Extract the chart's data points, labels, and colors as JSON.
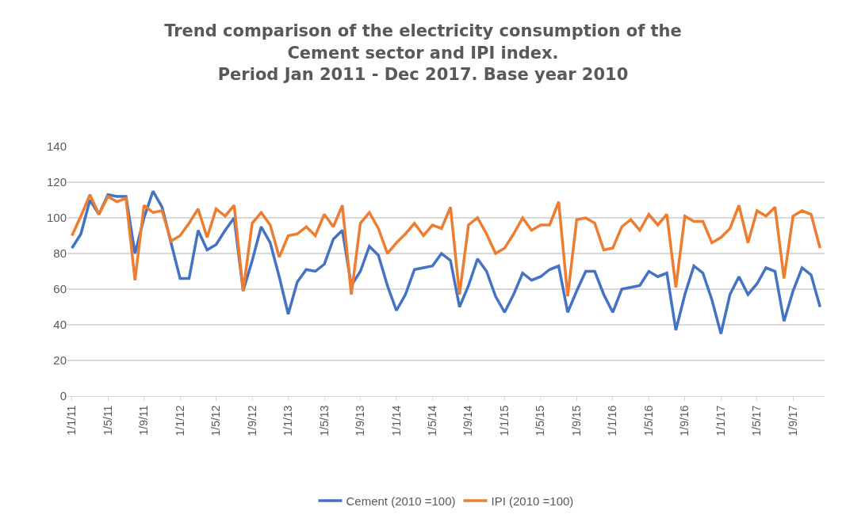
{
  "chart_data": {
    "type": "line",
    "title": "Trend comparison of the electricity consumption of the\nCement sector and IPI index.\nPeriod Jan 2011 - Dec 2017. Base year 2010",
    "categories": [
      "1/1/11",
      null,
      null,
      null,
      "1/5/11",
      null,
      null,
      null,
      "1/9/11",
      null,
      null,
      null,
      "1/1/12",
      null,
      null,
      null,
      "1/5/12",
      null,
      null,
      null,
      "1/9/12",
      null,
      null,
      null,
      "1/1/13",
      null,
      null,
      null,
      "1/5/13",
      null,
      null,
      null,
      "1/9/13",
      null,
      null,
      null,
      "1/1/14",
      null,
      null,
      null,
      "1/5/14",
      null,
      null,
      null,
      "1/9/14",
      null,
      null,
      null,
      "1/1/15",
      null,
      null,
      null,
      "1/5/15",
      null,
      null,
      null,
      "1/9/15",
      null,
      null,
      null,
      "1/1/16",
      null,
      null,
      null,
      "1/5/16",
      null,
      null,
      null,
      "1/9/16",
      null,
      null,
      null,
      "1/1/17",
      null,
      null,
      null,
      "1/5/17",
      null,
      null,
      null,
      "1/9/17",
      null,
      null,
      null
    ],
    "series": [
      {
        "name": "Cement (2010 =100)",
        "color": "#4472c4",
        "values": [
          83,
          91,
          110,
          102,
          113,
          112,
          112,
          80,
          100,
          115,
          106,
          86,
          66,
          66,
          93,
          82,
          85,
          93,
          100,
          59,
          76,
          95,
          86,
          67,
          46,
          64,
          71,
          70,
          74,
          88,
          93,
          62,
          70,
          84,
          79,
          62,
          48,
          57,
          71,
          72,
          73,
          80,
          76,
          50,
          62,
          77,
          70,
          56,
          47,
          57,
          69,
          65,
          67,
          71,
          73,
          47,
          59,
          70,
          70,
          57,
          47,
          60,
          61,
          62,
          70,
          67,
          69,
          37,
          57,
          73,
          69,
          54,
          35,
          57,
          67,
          57,
          63,
          72,
          70,
          42,
          59,
          72,
          68,
          50
        ]
      },
      {
        "name": "IPI (2010 =100)",
        "color": "#ed7d31",
        "values": [
          90,
          101,
          113,
          102,
          112,
          109,
          111,
          65,
          107,
          103,
          104,
          87,
          90,
          97,
          105,
          89,
          105,
          101,
          107,
          59,
          97,
          103,
          96,
          78,
          90,
          91,
          95,
          90,
          102,
          95,
          107,
          57,
          97,
          103,
          94,
          80,
          86,
          91,
          97,
          90,
          96,
          94,
          106,
          57,
          96,
          100,
          91,
          80,
          83,
          91,
          100,
          93,
          96,
          96,
          109,
          56,
          99,
          100,
          97,
          82,
          83,
          95,
          99,
          93,
          102,
          96,
          102,
          61,
          101,
          98,
          98,
          86,
          89,
          94,
          107,
          86,
          104,
          101,
          106,
          66,
          101,
          104,
          102,
          83
        ]
      }
    ],
    "ylim": [
      0,
      140
    ],
    "yticks": [
      0,
      20,
      40,
      60,
      80,
      100,
      120,
      140
    ],
    "grid": "y",
    "legend": "bottom",
    "marker": "none",
    "line_style": "solid"
  }
}
